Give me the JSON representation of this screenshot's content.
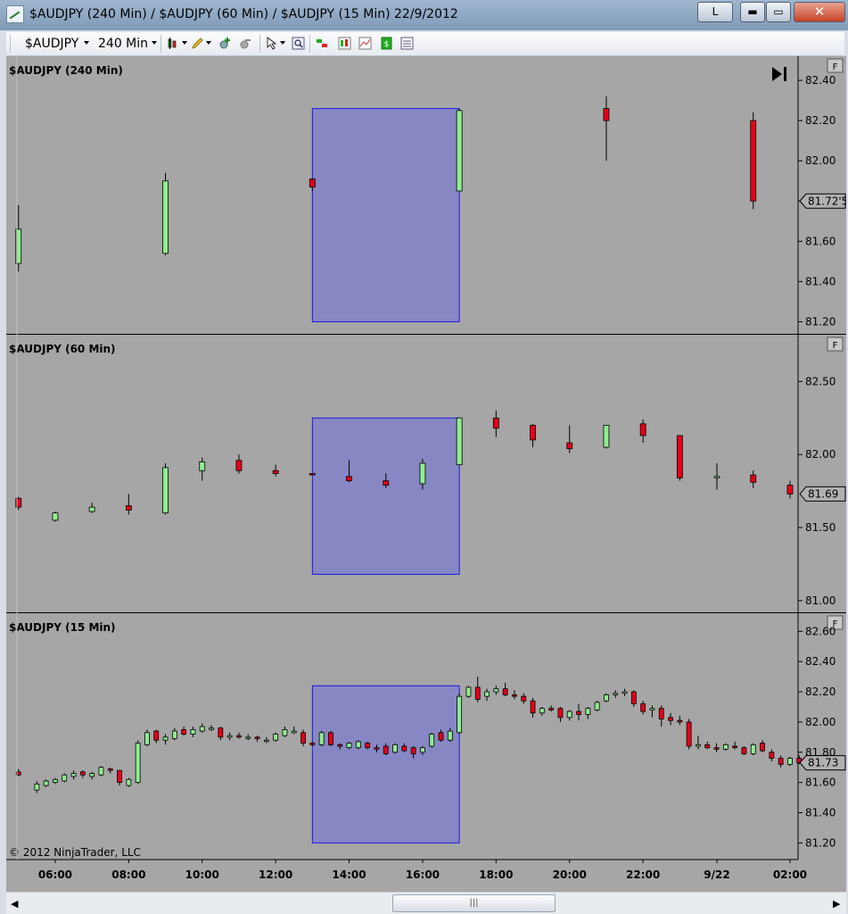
{
  "window": {
    "title": "$AUDJPY (240 Min) / $AUDJPY (60 Min) / $AUDJPY (15 Min)  22/9/2012",
    "btn_l": "L",
    "btn_min": "▬",
    "btn_max": "▭",
    "btn_close": "✕"
  },
  "toolbar": {
    "instrument": "$AUDJPY",
    "interval": "240 Min"
  },
  "copyright": "© 2012 NinjaTrader, LLC",
  "scrollbar": {
    "thumb_grip": "|||",
    "left_arrow": "◀",
    "right_arrow": "▶"
  },
  "colors": {
    "background": "#a6a6a6",
    "up": "#90ee90",
    "down": "#e8001a",
    "highlight": "#7b7bd0"
  },
  "chart_data": [
    {
      "type": "candlestick",
      "title": "$AUDJPY (240 Min)",
      "flag": "F",
      "y_ticks": [
        "82.40",
        "82.20",
        "82.00",
        "81.80",
        "81.60",
        "81.40",
        "81.20"
      ],
      "price_marker": "81.72'5",
      "highlight": {
        "x_from": "13:00",
        "x_to": "17:00",
        "y_from": 81.2,
        "y_to": 82.26
      },
      "candles": [
        {
          "t": "05:00",
          "o": 81.49,
          "h": 81.78,
          "l": 81.45,
          "c": 81.66
        },
        {
          "t": "09:00",
          "o": 81.54,
          "h": 81.94,
          "l": 81.53,
          "c": 81.9
        },
        {
          "t": "13:00",
          "o": 81.91,
          "h": 81.91,
          "l": 81.85,
          "c": 81.87
        },
        {
          "t": "17:00",
          "o": 81.85,
          "h": 82.26,
          "l": 81.85,
          "c": 82.25
        },
        {
          "t": "21:00",
          "o": 82.26,
          "h": 82.32,
          "l": 82.0,
          "c": 82.2
        },
        {
          "t": "01:00",
          "o": 82.2,
          "h": 82.24,
          "l": 81.76,
          "c": 81.8
        }
      ]
    },
    {
      "type": "candlestick",
      "title": "$AUDJPY (60 Min)",
      "flag": "F",
      "y_ticks": [
        "82.50",
        "82.00",
        "81.50",
        "81.00"
      ],
      "price_marker": "81.69",
      "highlight": {
        "x_from": "13:00",
        "x_to": "17:00",
        "y_from": 81.18,
        "y_to": 82.25
      },
      "candles": [
        {
          "t": "05:00",
          "o": 81.7,
          "h": 81.71,
          "l": 81.62,
          "c": 81.64
        },
        {
          "t": "06:00",
          "o": 81.55,
          "h": 81.61,
          "l": 81.54,
          "c": 81.6
        },
        {
          "t": "07:00",
          "o": 81.61,
          "h": 81.67,
          "l": 81.6,
          "c": 81.64
        },
        {
          "t": "08:00",
          "o": 81.65,
          "h": 81.73,
          "l": 81.59,
          "c": 81.62
        },
        {
          "t": "09:00",
          "o": 81.6,
          "h": 81.94,
          "l": 81.59,
          "c": 81.91
        },
        {
          "t": "10:00",
          "o": 81.89,
          "h": 81.98,
          "l": 81.82,
          "c": 81.95
        },
        {
          "t": "11:00",
          "o": 81.96,
          "h": 82.0,
          "l": 81.87,
          "c": 81.89
        },
        {
          "t": "12:00",
          "o": 81.89,
          "h": 81.93,
          "l": 81.85,
          "c": 81.87
        },
        {
          "t": "13:00",
          "o": 81.87,
          "h": 81.87,
          "l": 81.86,
          "c": 81.86
        },
        {
          "t": "14:00",
          "o": 81.85,
          "h": 81.96,
          "l": 81.81,
          "c": 81.82
        },
        {
          "t": "15:00",
          "o": 81.82,
          "h": 81.87,
          "l": 81.77,
          "c": 81.79
        },
        {
          "t": "16:00",
          "o": 81.8,
          "h": 81.97,
          "l": 81.76,
          "c": 81.94
        },
        {
          "t": "17:00",
          "o": 81.93,
          "h": 82.25,
          "l": 81.93,
          "c": 82.25
        },
        {
          "t": "18:00",
          "o": 82.25,
          "h": 82.3,
          "l": 82.12,
          "c": 82.18
        },
        {
          "t": "19:00",
          "o": 82.2,
          "h": 82.21,
          "l": 82.05,
          "c": 82.1
        },
        {
          "t": "20:00",
          "o": 82.08,
          "h": 82.2,
          "l": 82.01,
          "c": 82.04
        },
        {
          "t": "21:00",
          "o": 82.05,
          "h": 82.2,
          "l": 82.04,
          "c": 82.2
        },
        {
          "t": "22:00",
          "o": 82.21,
          "h": 82.24,
          "l": 82.08,
          "c": 82.13
        },
        {
          "t": "23:00",
          "o": 82.13,
          "h": 82.13,
          "l": 81.82,
          "c": 81.84
        },
        {
          "t": "9/22",
          "o": 81.85,
          "h": 81.94,
          "l": 81.76,
          "c": 81.85
        },
        {
          "t": "01:00",
          "o": 81.86,
          "h": 81.89,
          "l": 81.77,
          "c": 81.81
        },
        {
          "t": "02:00",
          "o": 81.79,
          "h": 81.82,
          "l": 81.7,
          "c": 81.73
        }
      ]
    },
    {
      "type": "candlestick",
      "title": "$AUDJPY (15 Min)",
      "flag": "F",
      "y_ticks": [
        "82.60",
        "82.40",
        "82.20",
        "82.00",
        "81.80",
        "81.60",
        "81.40",
        "81.20"
      ],
      "price_marker": "81.73",
      "x_tick_labels": [
        "06:00",
        "08:00",
        "10:00",
        "12:00",
        "14:00",
        "16:00",
        "18:00",
        "20:00",
        "22:00",
        "9/22",
        "02:00"
      ],
      "highlight": {
        "x_from": "13:00",
        "x_to": "17:00",
        "y_from": 81.2,
        "y_to": 82.24
      },
      "candles": [
        {
          "t": "05:00",
          "o": 81.67,
          "h": 81.69,
          "l": 81.64,
          "c": 81.65
        },
        {
          "t": "05:30",
          "o": 81.55,
          "h": 81.61,
          "l": 81.53,
          "c": 81.59
        },
        {
          "t": "05:45",
          "o": 81.58,
          "h": 81.62,
          "l": 81.57,
          "c": 81.61
        },
        {
          "t": "06:00",
          "o": 81.6,
          "h": 81.63,
          "l": 81.59,
          "c": 81.62
        },
        {
          "t": "06:15",
          "o": 81.61,
          "h": 81.66,
          "l": 81.6,
          "c": 81.65
        },
        {
          "t": "06:30",
          "o": 81.64,
          "h": 81.68,
          "l": 81.62,
          "c": 81.66
        },
        {
          "t": "06:45",
          "o": 81.67,
          "h": 81.68,
          "l": 81.63,
          "c": 81.65
        },
        {
          "t": "07:00",
          "o": 81.64,
          "h": 81.67,
          "l": 81.62,
          "c": 81.66
        },
        {
          "t": "07:15",
          "o": 81.65,
          "h": 81.71,
          "l": 81.64,
          "c": 81.7
        },
        {
          "t": "07:30",
          "o": 81.69,
          "h": 81.7,
          "l": 81.66,
          "c": 81.68
        },
        {
          "t": "07:45",
          "o": 81.68,
          "h": 81.68,
          "l": 81.58,
          "c": 81.6
        },
        {
          "t": "08:00",
          "o": 81.58,
          "h": 81.63,
          "l": 81.57,
          "c": 81.62
        },
        {
          "t": "08:15",
          "o": 81.6,
          "h": 81.88,
          "l": 81.59,
          "c": 81.86
        },
        {
          "t": "08:30",
          "o": 81.85,
          "h": 81.95,
          "l": 81.84,
          "c": 81.93
        },
        {
          "t": "08:45",
          "o": 81.94,
          "h": 81.95,
          "l": 81.86,
          "c": 81.88
        },
        {
          "t": "09:00",
          "o": 81.88,
          "h": 81.92,
          "l": 81.85,
          "c": 81.9
        },
        {
          "t": "09:15",
          "o": 81.89,
          "h": 81.96,
          "l": 81.88,
          "c": 81.94
        },
        {
          "t": "09:30",
          "o": 81.95,
          "h": 81.97,
          "l": 81.91,
          "c": 81.92
        },
        {
          "t": "09:45",
          "o": 81.92,
          "h": 81.97,
          "l": 81.9,
          "c": 81.95
        },
        {
          "t": "10:00",
          "o": 81.94,
          "h": 81.99,
          "l": 81.93,
          "c": 81.97
        },
        {
          "t": "10:15",
          "o": 81.96,
          "h": 81.98,
          "l": 81.94,
          "c": 81.96
        },
        {
          "t": "10:30",
          "o": 81.96,
          "h": 81.97,
          "l": 81.88,
          "c": 81.9
        },
        {
          "t": "10:45",
          "o": 81.9,
          "h": 81.93,
          "l": 81.88,
          "c": 81.91
        },
        {
          "t": "11:00",
          "o": 81.91,
          "h": 81.93,
          "l": 81.89,
          "c": 81.9
        },
        {
          "t": "11:15",
          "o": 81.9,
          "h": 81.92,
          "l": 81.88,
          "c": 81.9
        },
        {
          "t": "11:30",
          "o": 81.9,
          "h": 81.91,
          "l": 81.87,
          "c": 81.89
        },
        {
          "t": "11:45",
          "o": 81.88,
          "h": 81.9,
          "l": 81.86,
          "c": 81.88
        },
        {
          "t": "12:00",
          "o": 81.88,
          "h": 81.93,
          "l": 81.87,
          "c": 81.92
        },
        {
          "t": "12:15",
          "o": 81.91,
          "h": 81.97,
          "l": 81.9,
          "c": 81.95
        },
        {
          "t": "12:30",
          "o": 81.93,
          "h": 81.97,
          "l": 81.92,
          "c": 81.94
        },
        {
          "t": "12:45",
          "o": 81.93,
          "h": 81.95,
          "l": 81.84,
          "c": 81.86
        },
        {
          "t": "13:00",
          "o": 81.86,
          "h": 81.87,
          "l": 81.84,
          "c": 81.85
        },
        {
          "t": "13:15",
          "o": 81.85,
          "h": 81.94,
          "l": 81.84,
          "c": 81.93
        },
        {
          "t": "13:30",
          "o": 81.93,
          "h": 81.94,
          "l": 81.84,
          "c": 81.85
        },
        {
          "t": "13:45",
          "o": 81.85,
          "h": 81.86,
          "l": 81.82,
          "c": 81.84
        },
        {
          "t": "14:00",
          "o": 81.83,
          "h": 81.87,
          "l": 81.82,
          "c": 81.86
        },
        {
          "t": "14:15",
          "o": 81.83,
          "h": 81.88,
          "l": 81.82,
          "c": 81.87
        },
        {
          "t": "14:30",
          "o": 81.86,
          "h": 81.87,
          "l": 81.82,
          "c": 81.83
        },
        {
          "t": "14:45",
          "o": 81.83,
          "h": 81.85,
          "l": 81.8,
          "c": 81.82
        },
        {
          "t": "15:00",
          "o": 81.84,
          "h": 81.86,
          "l": 81.78,
          "c": 81.79
        },
        {
          "t": "15:15",
          "o": 81.8,
          "h": 81.86,
          "l": 81.79,
          "c": 81.85
        },
        {
          "t": "15:30",
          "o": 81.84,
          "h": 81.86,
          "l": 81.8,
          "c": 81.81
        },
        {
          "t": "15:45",
          "o": 81.83,
          "h": 81.84,
          "l": 81.76,
          "c": 81.79
        },
        {
          "t": "16:00",
          "o": 81.8,
          "h": 81.84,
          "l": 81.78,
          "c": 81.83
        },
        {
          "t": "16:15",
          "o": 81.84,
          "h": 81.93,
          "l": 81.83,
          "c": 81.92
        },
        {
          "t": "16:30",
          "o": 81.93,
          "h": 81.95,
          "l": 81.87,
          "c": 81.88
        },
        {
          "t": "16:45",
          "o": 81.88,
          "h": 81.96,
          "l": 81.87,
          "c": 81.94
        },
        {
          "t": "17:00",
          "o": 81.93,
          "h": 82.19,
          "l": 81.92,
          "c": 82.17
        },
        {
          "t": "17:15",
          "o": 82.17,
          "h": 82.24,
          "l": 82.16,
          "c": 82.23
        },
        {
          "t": "17:30",
          "o": 82.23,
          "h": 82.3,
          "l": 82.13,
          "c": 82.15
        },
        {
          "t": "17:45",
          "o": 82.17,
          "h": 82.22,
          "l": 82.14,
          "c": 82.2
        },
        {
          "t": "18:00",
          "o": 82.2,
          "h": 82.24,
          "l": 82.18,
          "c": 82.22
        },
        {
          "t": "18:15",
          "o": 82.22,
          "h": 82.26,
          "l": 82.17,
          "c": 82.18
        },
        {
          "t": "18:30",
          "o": 82.18,
          "h": 82.21,
          "l": 82.15,
          "c": 82.17
        },
        {
          "t": "18:45",
          "o": 82.17,
          "h": 82.19,
          "l": 82.12,
          "c": 82.14
        },
        {
          "t": "19:00",
          "o": 82.14,
          "h": 82.16,
          "l": 82.03,
          "c": 82.06
        },
        {
          "t": "19:15",
          "o": 82.06,
          "h": 82.1,
          "l": 82.04,
          "c": 82.09
        },
        {
          "t": "19:30",
          "o": 82.09,
          "h": 82.11,
          "l": 82.07,
          "c": 82.08
        },
        {
          "t": "19:45",
          "o": 82.09,
          "h": 82.1,
          "l": 82.0,
          "c": 82.03
        },
        {
          "t": "20:00",
          "o": 82.03,
          "h": 82.08,
          "l": 82.01,
          "c": 82.07
        },
        {
          "t": "20:15",
          "o": 82.07,
          "h": 82.12,
          "l": 82.01,
          "c": 82.05
        },
        {
          "t": "20:30",
          "o": 82.05,
          "h": 82.1,
          "l": 82.02,
          "c": 82.09
        },
        {
          "t": "20:45",
          "o": 82.08,
          "h": 82.14,
          "l": 82.07,
          "c": 82.13
        },
        {
          "t": "21:00",
          "o": 82.14,
          "h": 82.19,
          "l": 82.13,
          "c": 82.18
        },
        {
          "t": "21:15",
          "o": 82.18,
          "h": 82.21,
          "l": 82.16,
          "c": 82.19
        },
        {
          "t": "21:30",
          "o": 82.19,
          "h": 82.22,
          "l": 82.17,
          "c": 82.2
        },
        {
          "t": "21:45",
          "o": 82.2,
          "h": 82.21,
          "l": 82.1,
          "c": 82.12
        },
        {
          "t": "22:00",
          "o": 82.12,
          "h": 82.14,
          "l": 82.05,
          "c": 82.07
        },
        {
          "t": "22:15",
          "o": 82.08,
          "h": 82.11,
          "l": 82.03,
          "c": 82.09
        },
        {
          "t": "22:30",
          "o": 82.09,
          "h": 82.11,
          "l": 81.97,
          "c": 82.02
        },
        {
          "t": "22:45",
          "o": 82.03,
          "h": 82.06,
          "l": 81.98,
          "c": 82.01
        },
        {
          "t": "23:00",
          "o": 82.01,
          "h": 82.04,
          "l": 81.98,
          "c": 82.0
        },
        {
          "t": "23:15",
          "o": 82.0,
          "h": 82.02,
          "l": 81.82,
          "c": 81.84
        },
        {
          "t": "23:30",
          "o": 81.84,
          "h": 81.91,
          "l": 81.82,
          "c": 81.85
        },
        {
          "t": "23:45",
          "o": 81.85,
          "h": 81.87,
          "l": 81.82,
          "c": 81.83
        },
        {
          "t": "9/22 00:00",
          "o": 81.83,
          "h": 81.86,
          "l": 81.8,
          "c": 81.82
        },
        {
          "t": "00:15",
          "o": 81.82,
          "h": 81.86,
          "l": 81.81,
          "c": 81.85
        },
        {
          "t": "00:30",
          "o": 81.84,
          "h": 81.87,
          "l": 81.82,
          "c": 81.83
        },
        {
          "t": "00:45",
          "o": 81.83,
          "h": 81.84,
          "l": 81.78,
          "c": 81.79
        },
        {
          "t": "01:00",
          "o": 81.79,
          "h": 81.86,
          "l": 81.78,
          "c": 81.85
        },
        {
          "t": "01:15",
          "o": 81.86,
          "h": 81.88,
          "l": 81.8,
          "c": 81.81
        },
        {
          "t": "01:30",
          "o": 81.8,
          "h": 81.82,
          "l": 81.74,
          "c": 81.76
        },
        {
          "t": "01:45",
          "o": 81.76,
          "h": 81.78,
          "l": 81.7,
          "c": 81.72
        },
        {
          "t": "02:00",
          "o": 81.72,
          "h": 81.77,
          "l": 81.71,
          "c": 81.76
        },
        {
          "t": "02:15",
          "o": 81.76,
          "h": 81.78,
          "l": 81.72,
          "c": 81.73
        }
      ]
    }
  ]
}
